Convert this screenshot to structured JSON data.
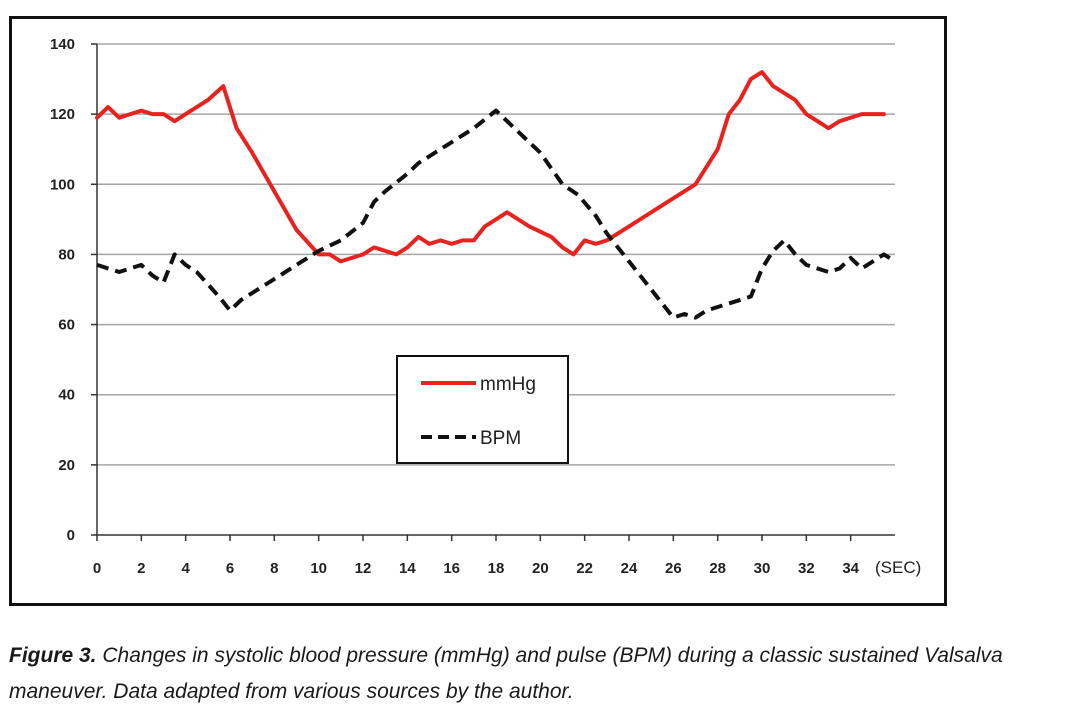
{
  "caption": {
    "label": "Figure 3.",
    "text": "Changes in systolic blood pressure (mmHg) and pulse (BPM) during a classic sustained Valsalva maneuver. Data adapted from various sources by the author."
  },
  "colors": {
    "mmhg_line": "#e8221f",
    "bpm_line": "#111111",
    "grid": "#a6a6a6",
    "axis": "#333333"
  },
  "chart_data": {
    "type": "line",
    "title": "",
    "xlabel": "(SEC)",
    "ylabel": "",
    "xlim": [
      0,
      36
    ],
    "ylim": [
      0,
      140
    ],
    "x_ticks": [
      "0",
      "2",
      "4",
      "6",
      "8",
      "10",
      "12",
      "14",
      "16",
      "18",
      "20",
      "22",
      "24",
      "26",
      "28",
      "30",
      "32",
      "34"
    ],
    "y_ticks": [
      "0",
      "20",
      "40",
      "60",
      "80",
      "100",
      "120",
      "140"
    ],
    "grid": "horizontal",
    "legend_position": "center",
    "series": [
      {
        "name": "mmHg",
        "style": "solid",
        "color": "#e8221f",
        "points": [
          [
            0,
            119
          ],
          [
            0.5,
            122
          ],
          [
            1,
            119
          ],
          [
            2,
            121
          ],
          [
            2.5,
            120
          ],
          [
            3,
            120
          ],
          [
            3.5,
            118
          ],
          [
            4,
            120
          ],
          [
            5,
            124
          ],
          [
            5.7,
            128
          ],
          [
            6.3,
            116
          ],
          [
            7,
            109
          ],
          [
            8,
            98
          ],
          [
            9,
            87
          ],
          [
            10,
            80
          ],
          [
            10.5,
            80
          ],
          [
            11,
            78
          ],
          [
            12,
            80
          ],
          [
            12.5,
            82
          ],
          [
            13,
            81
          ],
          [
            13.5,
            80
          ],
          [
            14,
            82
          ],
          [
            14.5,
            85
          ],
          [
            15,
            83
          ],
          [
            15.5,
            84
          ],
          [
            16,
            83
          ],
          [
            16.5,
            84
          ],
          [
            17,
            84
          ],
          [
            17.5,
            88
          ],
          [
            18.5,
            92
          ],
          [
            19.5,
            88
          ],
          [
            20.5,
            85
          ],
          [
            21,
            82
          ],
          [
            21.5,
            80
          ],
          [
            22,
            84
          ],
          [
            22.5,
            83
          ],
          [
            23,
            84
          ],
          [
            24,
            88
          ],
          [
            25,
            92
          ],
          [
            26,
            96
          ],
          [
            27,
            100
          ],
          [
            28,
            110
          ],
          [
            28.5,
            120
          ],
          [
            29,
            124
          ],
          [
            29.5,
            130
          ],
          [
            30,
            132
          ],
          [
            30.5,
            128
          ],
          [
            31,
            126
          ],
          [
            31.5,
            124
          ],
          [
            32,
            120
          ],
          [
            33,
            116
          ],
          [
            33.5,
            118
          ],
          [
            34.5,
            120
          ],
          [
            35,
            120
          ],
          [
            35.5,
            120
          ]
        ]
      },
      {
        "name": "BPM",
        "style": "dashed",
        "color": "#111111",
        "points": [
          [
            0,
            77
          ],
          [
            1,
            75
          ],
          [
            2,
            77
          ],
          [
            2.5,
            74
          ],
          [
            3,
            72
          ],
          [
            3.5,
            80
          ],
          [
            4,
            77
          ],
          [
            4.5,
            75
          ],
          [
            5.5,
            68
          ],
          [
            6,
            64
          ],
          [
            6.5,
            67
          ],
          [
            7.5,
            71
          ],
          [
            8.5,
            75
          ],
          [
            9.5,
            79
          ],
          [
            10,
            81
          ],
          [
            11,
            84
          ],
          [
            12,
            89
          ],
          [
            12.5,
            95
          ],
          [
            13,
            98
          ],
          [
            14,
            103
          ],
          [
            14.5,
            106
          ],
          [
            15,
            108
          ],
          [
            16,
            112
          ],
          [
            17,
            116
          ],
          [
            18,
            121
          ],
          [
            19,
            115
          ],
          [
            20,
            109
          ],
          [
            21,
            100
          ],
          [
            21.7,
            97
          ],
          [
            22.5,
            91
          ],
          [
            23,
            86
          ],
          [
            24,
            78
          ],
          [
            25,
            70
          ],
          [
            26,
            62
          ],
          [
            26.5,
            63
          ],
          [
            27,
            62
          ],
          [
            27.5,
            64
          ],
          [
            28.5,
            66
          ],
          [
            29.5,
            68
          ],
          [
            30,
            76
          ],
          [
            30.5,
            81
          ],
          [
            31,
            84
          ],
          [
            31.5,
            80
          ],
          [
            32,
            77
          ],
          [
            33,
            75
          ],
          [
            33.5,
            76
          ],
          [
            34,
            79
          ],
          [
            34.5,
            76
          ],
          [
            35,
            78
          ],
          [
            35.5,
            80
          ],
          [
            36,
            78
          ]
        ]
      }
    ]
  }
}
